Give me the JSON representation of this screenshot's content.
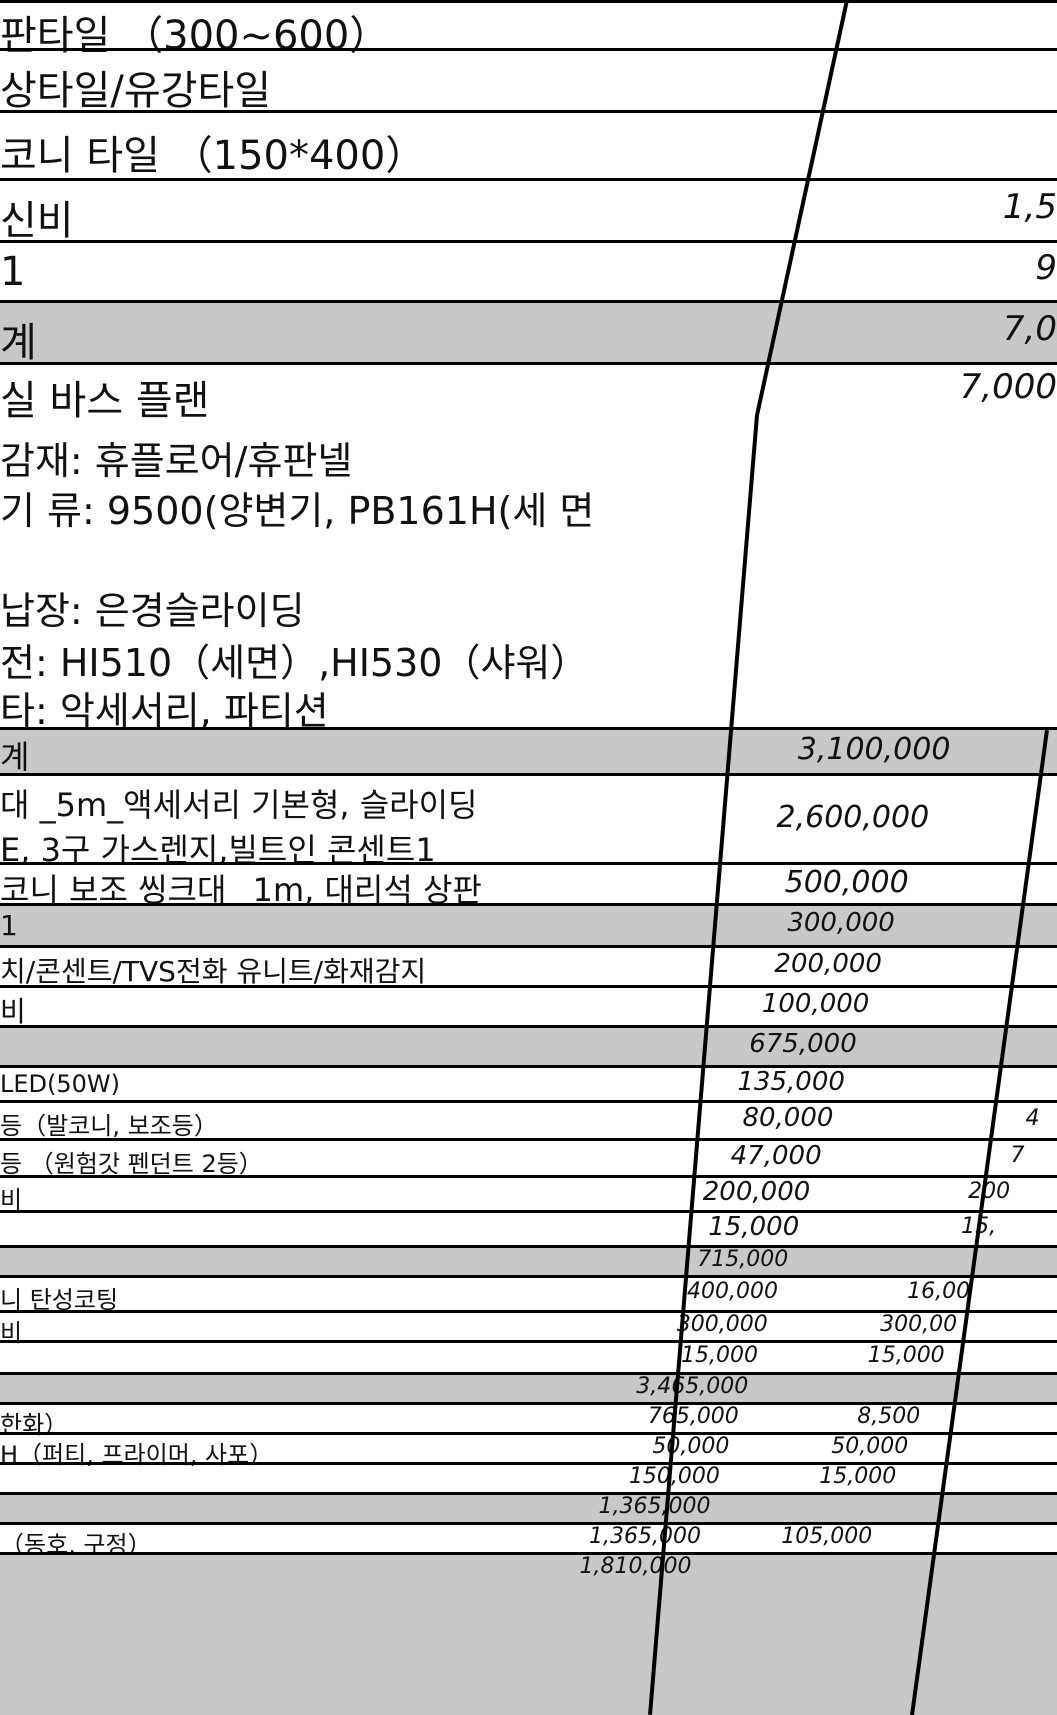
{
  "top_rows": [
    {
      "label": "판타일 （300~600）",
      "amount": ""
    },
    {
      "label": "상타일/유강타일",
      "amount": ""
    },
    {
      "label": "코니 타일 （150*400）",
      "amount": ""
    },
    {
      "label": "신비",
      "amount": "1,5"
    },
    {
      "label": "1",
      "amount": "9"
    },
    {
      "label": "계",
      "amount": "7,0",
      "shaded": true
    },
    {
      "label": "실 바스 플랜",
      "amount": "7,000"
    }
  ],
  "bath_notes": [
    "감재: 휴플로어/휴판넬",
    "기 류: 9500(양변기, PB161H(세 면",
    "",
    "납장: 은경슬라이딩",
    "전: HI510（세면）,HI530（샤워）",
    "타: 악세서리, 파티션"
  ],
  "rows": [
    {
      "label": "계",
      "amount": "3,100,000",
      "amount2": "",
      "shaded": true
    },
    {
      "label": "대 _5m_액세서리 기본형, 슬라이딩",
      "label2": "E, 3구 가스렌지,빌트인 콘센트1",
      "amount": "2,600,000",
      "amount2": ""
    },
    {
      "label": "코니 보조 씽크대 _1m, 대리석 상판",
      "amount": "500,000",
      "amount2": ""
    },
    {
      "label": "1",
      "amount": "300,000",
      "amount2": "",
      "shaded": true
    },
    {
      "label": "치/콘센트/TVS전화 유니트/화재감지",
      "amount": "200,000",
      "amount2": ""
    },
    {
      "label": "비",
      "amount": "100,000",
      "amount2": ""
    },
    {
      "label": "",
      "amount": "675,000",
      "amount2": "",
      "shaded": true
    },
    {
      "label": "LED(50W)",
      "amount": "135,000",
      "amount2": ""
    },
    {
      "label": "등（발코니, 보조등）",
      "amount": "80,000",
      "amount2": "4"
    },
    {
      "label": "등 （원험갓 펜던트 2등）",
      "amount": "47,000",
      "amount2": "7"
    },
    {
      "label": "비",
      "amount": "200,000",
      "amount2": "200"
    },
    {
      "label": "",
      "amount": "15,000",
      "amount2": "15,"
    },
    {
      "label": "",
      "amount": "715,000",
      "amount2": "",
      "shaded": true
    },
    {
      "label": "니 탄성코팅",
      "amount": "400,000",
      "amount2": "16,00"
    },
    {
      "label": "비",
      "amount": "300,000",
      "amount2": "300,00"
    },
    {
      "label": "",
      "amount": "15,000",
      "amount2": "15,000"
    },
    {
      "label": "",
      "amount": "3,465,000",
      "amount2": "",
      "shaded": true
    },
    {
      "label": "한화）",
      "amount": "765,000",
      "amount2": "8,500"
    },
    {
      "label": "H（퍼티, 프라이머, 사포）",
      "amount": "50,000",
      "amount2": "50,000"
    },
    {
      "label": "",
      "amount": "150,000",
      "amount2": "15,000"
    },
    {
      "label": "",
      "amount": "1,365,000",
      "amount2": "",
      "shaded": true
    },
    {
      "label": "（동호, 구정）",
      "amount": "1,365,000",
      "amount2": "105,000"
    },
    {
      "label": "",
      "amount": "1,810,000",
      "amount2": "",
      "shaded": true
    }
  ]
}
